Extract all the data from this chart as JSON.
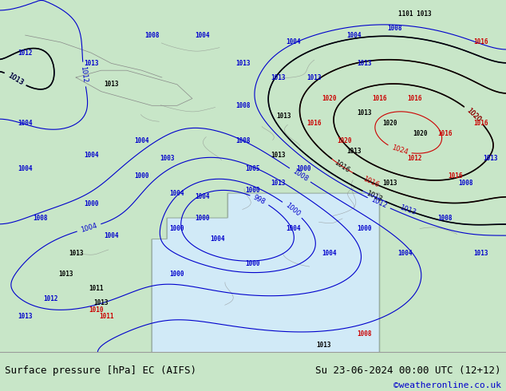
{
  "title_left": "Surface pressure [hPa] EC (AIFS)",
  "title_right": "Su 23-06-2024 00:00 UTC (12+12)",
  "copyright": "©weatheronline.co.uk",
  "bg_map_color": "#c8e6c8",
  "bg_sea_color": "#d0e8f0",
  "border_color": "#cccccc",
  "bottom_bar_color": "#ffffff",
  "text_color_black": "#000000",
  "text_color_blue": "#0000cc",
  "text_color_red": "#cc0000",
  "contour_blue": "#0000cc",
  "contour_black": "#000000",
  "contour_red": "#cc0000",
  "figsize": [
    6.34,
    4.9
  ],
  "dpi": 100,
  "bottom_bar_height": 0.1,
  "title_fontsize": 9,
  "copyright_fontsize": 8
}
